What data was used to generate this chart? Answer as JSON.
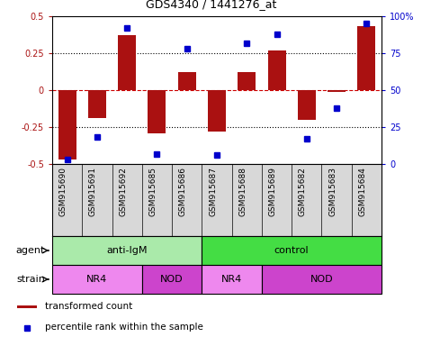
{
  "title": "GDS4340 / 1441276_at",
  "samples": [
    "GSM915690",
    "GSM915691",
    "GSM915692",
    "GSM915685",
    "GSM915686",
    "GSM915687",
    "GSM915688",
    "GSM915689",
    "GSM915682",
    "GSM915683",
    "GSM915684"
  ],
  "bar_values": [
    -0.47,
    -0.19,
    0.37,
    -0.29,
    0.12,
    -0.28,
    0.12,
    0.27,
    -0.2,
    -0.01,
    0.43
  ],
  "percentile_values": [
    3,
    18,
    92,
    7,
    78,
    6,
    82,
    88,
    17,
    38,
    95
  ],
  "bar_color": "#aa1111",
  "percentile_color": "#0000cc",
  "ylim_left": [
    -0.5,
    0.5
  ],
  "ylim_right": [
    0,
    100
  ],
  "yticks_left": [
    -0.5,
    -0.25,
    0,
    0.25,
    0.5
  ],
  "yticks_right": [
    0,
    25,
    50,
    75,
    100
  ],
  "ytick_labels_left": [
    "-0.5",
    "-0.25",
    "0",
    "0.25",
    "0.5"
  ],
  "ytick_labels_right": [
    "0",
    "25",
    "50",
    "75",
    "100%"
  ],
  "agent_labels": [
    {
      "label": "anti-IgM",
      "start": 0,
      "end": 5,
      "color": "#aaeaaa"
    },
    {
      "label": "control",
      "start": 5,
      "end": 11,
      "color": "#44dd44"
    }
  ],
  "strain_labels": [
    {
      "label": "NR4",
      "start": 0,
      "end": 3,
      "color": "#ee88ee"
    },
    {
      "label": "NOD",
      "start": 3,
      "end": 5,
      "color": "#cc44cc"
    },
    {
      "label": "NR4",
      "start": 5,
      "end": 7,
      "color": "#ee88ee"
    },
    {
      "label": "NOD",
      "start": 7,
      "end": 11,
      "color": "#cc44cc"
    }
  ],
  "legend_bar_label": "transformed count",
  "legend_pct_label": "percentile rank within the sample",
  "row_label_agent": "agent",
  "row_label_strain": "strain",
  "hline_color": "#cc0000",
  "hline_style": "dashed",
  "grid_color": "#000000",
  "bg_color": "#d8d8d8",
  "bar_width": 0.6,
  "marker_size": 5
}
